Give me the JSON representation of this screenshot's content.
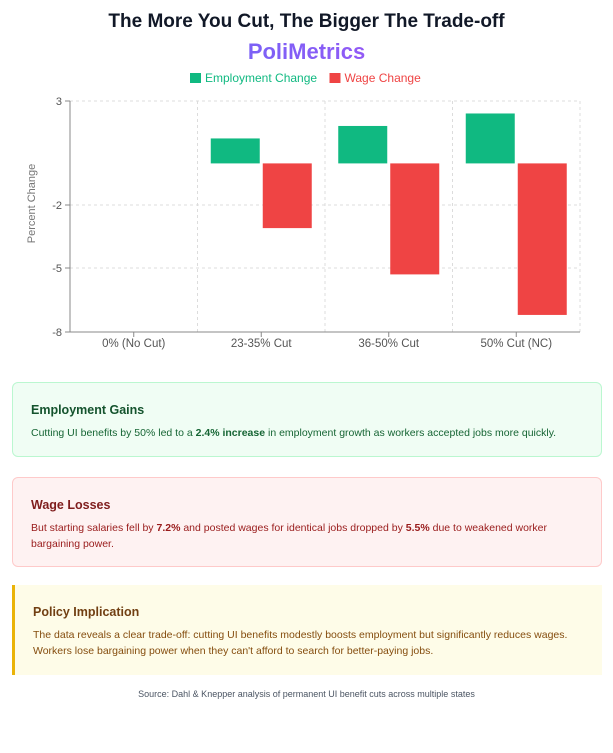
{
  "header": {
    "title": "The More You Cut, The Bigger The Trade-off",
    "brand": "PoliMetrics"
  },
  "chart_data": {
    "type": "bar",
    "title": "",
    "xlabel": "",
    "ylabel": "Percent Change",
    "categories": [
      "0% (No Cut)",
      "23-35% Cut",
      "36-50% Cut",
      "50% Cut (NC)"
    ],
    "series": [
      {
        "name": "Employment Change",
        "color": "#10b981",
        "values": [
          0,
          1.2,
          1.8,
          2.4
        ]
      },
      {
        "name": "Wage Change",
        "color": "#ef4444",
        "values": [
          0,
          -3.1,
          -5.3,
          -7.2
        ]
      }
    ],
    "ylim": [
      -8,
      3
    ],
    "yticks": [
      3,
      -2,
      -5,
      -8
    ],
    "grid": true,
    "legend": "top-center"
  },
  "cards": {
    "employment": {
      "title": "Employment Gains",
      "text_before": "Cutting UI benefits by 50% led to a ",
      "highlight": "2.4% increase",
      "text_after": " in employment growth as workers accepted jobs more quickly."
    },
    "wage": {
      "title": "Wage Losses",
      "text_before": "But starting salaries fell by ",
      "highlight1": "7.2%",
      "text_middle": " and posted wages for identical jobs dropped by ",
      "highlight2": "5.5%",
      "text_after": " due to weakened worker bargaining power."
    },
    "policy": {
      "title": "Policy Implication",
      "text": "The data reveals a clear trade-off: cutting UI benefits modestly boosts employment but significantly reduces wages. Workers lose bargaining power when they can't afford to search for better-paying jobs."
    }
  },
  "footer": {
    "source": "Source: Dahl & Knepper analysis of permanent UI benefit cuts across multiple states"
  }
}
